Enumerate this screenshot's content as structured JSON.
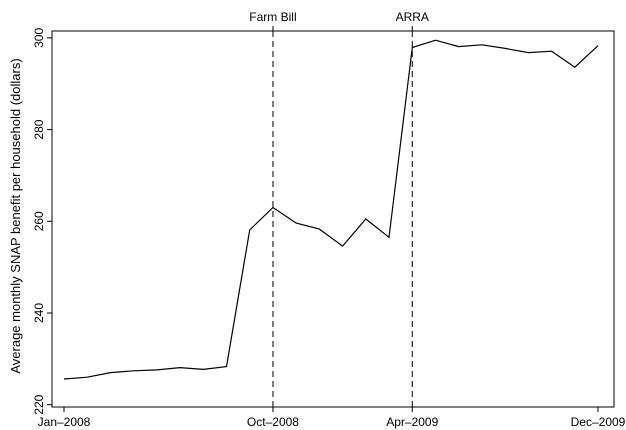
{
  "chart_data": {
    "type": "line",
    "title": "",
    "xlabel": "",
    "ylabel": "Average monthly SNAP benefit per household (dollars)",
    "x": [
      "2008-01",
      "2008-02",
      "2008-03",
      "2008-04",
      "2008-05",
      "2008-06",
      "2008-07",
      "2008-08",
      "2008-09",
      "2008-10",
      "2008-11",
      "2008-12",
      "2009-01",
      "2009-02",
      "2009-03",
      "2009-04",
      "2009-05",
      "2009-06",
      "2009-07",
      "2009-08",
      "2009-09",
      "2009-10",
      "2009-11",
      "2009-12"
    ],
    "series": [
      {
        "values": [
          225.6,
          226.0,
          227.0,
          227.4,
          227.6,
          228.1,
          227.7,
          228.3,
          258.1,
          263.0,
          259.6,
          258.3,
          254.6,
          260.5,
          256.5,
          297.9,
          299.5,
          298.1,
          298.5,
          297.7,
          296.8,
          297.1,
          293.6,
          298.3
        ],
        "color": "#000000"
      }
    ],
    "ylim": [
      219.5,
      301.5
    ],
    "yticks": [
      220,
      240,
      260,
      280,
      300
    ],
    "ytick_labels": [
      "220",
      "240",
      "260",
      "280",
      "300"
    ],
    "xticks": [
      "2008-01",
      "2008-10",
      "2009-04",
      "2009-12"
    ],
    "xtick_labels": [
      "Jan–2008",
      "Oct–2008",
      "Apr–2009",
      "Dec–2009"
    ],
    "vlines": [
      {
        "x": "2008-10",
        "label": "Farm Bill",
        "style": "dashed"
      },
      {
        "x": "2009-04",
        "label": "ARRA",
        "style": "dashed"
      }
    ],
    "grid": false,
    "legend": "none"
  }
}
